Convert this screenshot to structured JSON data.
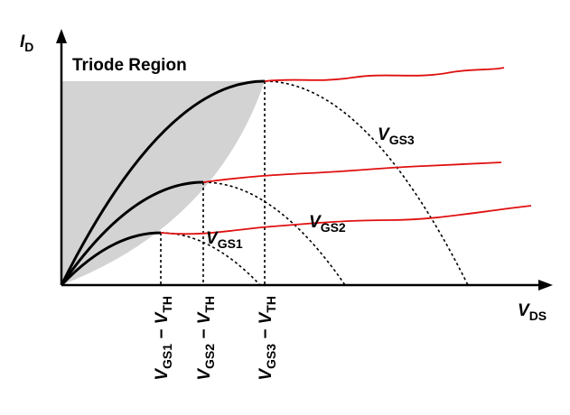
{
  "labels": {
    "id": {
      "main": "I",
      "sub": "D"
    },
    "triode": "Triode Region",
    "vgs3": {
      "main": "V",
      "sub": "GS3"
    },
    "vgs2": {
      "main": "V",
      "sub": "GS2"
    },
    "vgs1": {
      "main": "V",
      "sub": "GS1"
    },
    "vds": {
      "main": "V",
      "sub": "DS"
    },
    "ov1": {
      "main": "V",
      "sub": "GS1",
      "minus": " − V",
      "sub2": "TH"
    },
    "ov2": {
      "main": "V",
      "sub": "GS2",
      "minus": " − V",
      "sub2": "TH"
    },
    "ov3": {
      "main": "V",
      "sub": "GS3",
      "minus": " − V",
      "sub2": "TH"
    }
  }
}
